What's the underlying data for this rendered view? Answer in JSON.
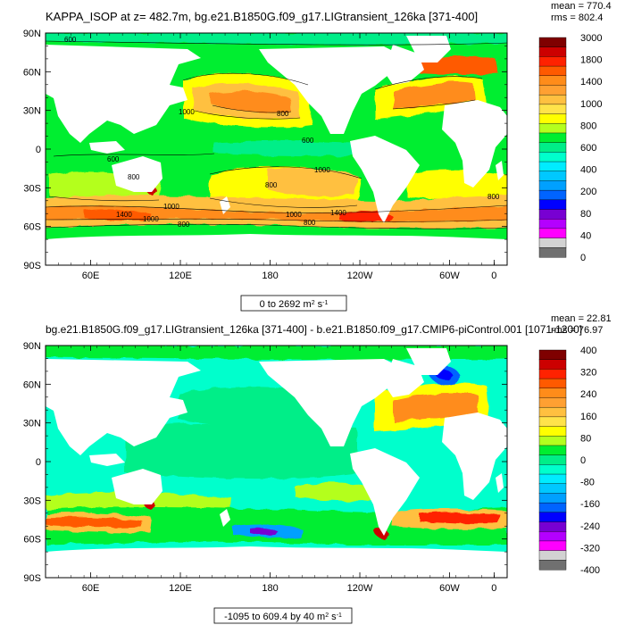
{
  "chart_data": [
    {
      "type": "heatmap",
      "title": "KAPPA_ISOP at z= 482.7m, bg.e21.B1850G.f09_g17.LIGtransient_126ka [371-400]",
      "stats": {
        "mean": "mean = 770.4",
        "rms": "rms = 802.4"
      },
      "range_label": {
        "main": "0 to 2692 m",
        "sup1": "2",
        "mid": " s",
        "sup2": "-1"
      },
      "y_ticks": [
        "90N",
        "60N",
        "30N",
        "0",
        "30S",
        "60S",
        "90S"
      ],
      "x_ticks": [
        "60E",
        "120E",
        "180",
        "120W",
        "60W",
        "0"
      ],
      "colorbar": {
        "labels": [
          "3000",
          "1800",
          "1400",
          "1000",
          "800",
          "600",
          "400",
          "200",
          "80",
          "40",
          "0"
        ],
        "colors": [
          "#7f0000",
          "#cc0000",
          "#ff2200",
          "#ff5a00",
          "#ff8c1a",
          "#ffa032",
          "#ffc040",
          "#ffe34a",
          "#ffff00",
          "#b4ff1e",
          "#00ee30",
          "#00ee88",
          "#00ffcc",
          "#00ecff",
          "#00c8ff",
          "#00a0ff",
          "#0064ff",
          "#0000ff",
          "#7800d2",
          "#b400ff",
          "#ff00ff",
          "#d2d2d2",
          "#707070"
        ]
      },
      "contour_labels": [
        "600",
        "1000",
        "800",
        "600",
        "600",
        "800",
        "1000",
        "800",
        "1000",
        "1400",
        "1000",
        "800",
        "1000",
        "1400",
        "800",
        "800"
      ]
    },
    {
      "type": "heatmap",
      "title": "bg.e21.B1850G.f09_g17.LIGtransient_126ka [371-400] - b.e21.B1850.f09_g17.CMIP6-piControl.001 [1071-1200]",
      "stats": {
        "mean": "mean = 22.81",
        "rms": "rms = 76.97"
      },
      "range_label": {
        "main": "-1095 to 609.4 by 40 m",
        "sup1": "2",
        "mid": " s",
        "sup2": "-1"
      },
      "y_ticks": [
        "90N",
        "60N",
        "30N",
        "0",
        "30S",
        "60S",
        "90S"
      ],
      "x_ticks": [
        "60E",
        "120E",
        "180",
        "120W",
        "60W",
        "0"
      ],
      "colorbar": {
        "labels": [
          "400",
          "320",
          "240",
          "160",
          "80",
          "0",
          "-80",
          "-160",
          "-240",
          "-320",
          "-400"
        ],
        "colors": [
          "#7f0000",
          "#cc0000",
          "#ff2200",
          "#ff5a00",
          "#ff8c1a",
          "#ffa032",
          "#ffc040",
          "#ffe34a",
          "#ffff00",
          "#b4ff1e",
          "#00ee30",
          "#00ee88",
          "#00ffcc",
          "#00ecff",
          "#00c8ff",
          "#00a0ff",
          "#0064ff",
          "#0000ff",
          "#7800d2",
          "#b400ff",
          "#ff00ff",
          "#d2d2d2",
          "#707070"
        ]
      }
    }
  ]
}
